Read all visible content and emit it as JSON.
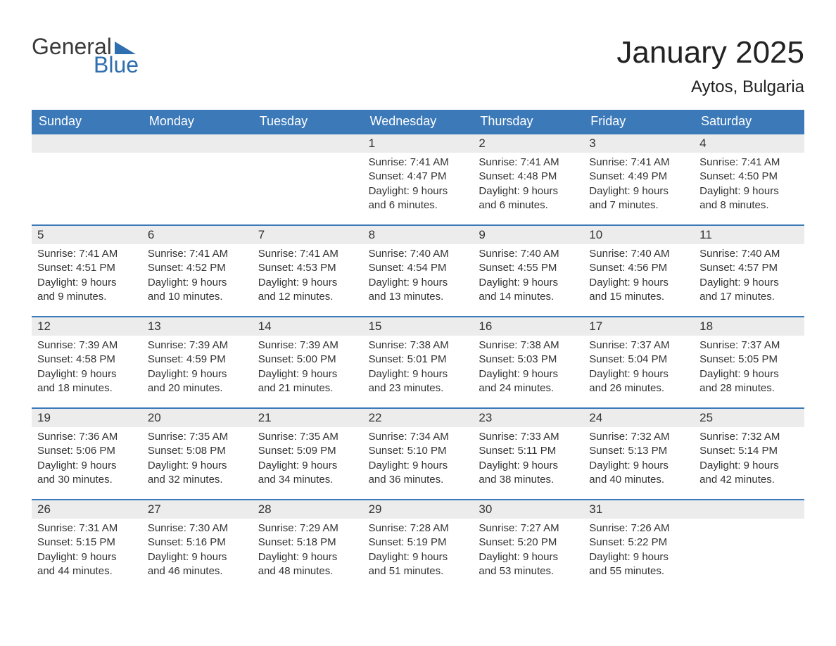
{
  "brand": {
    "word1": "General",
    "word2": "Blue",
    "text_color": "#3a3a3a",
    "accent_color": "#2f6faf"
  },
  "title": {
    "month": "January 2025",
    "location": "Aytos, Bulgaria"
  },
  "styles": {
    "header_bg": "#3b79b9",
    "header_text": "#ffffff",
    "daybar_bg": "#ececec",
    "border_color": "#3b79b9",
    "body_text": "#333333",
    "weekday_fontsize": 18,
    "daynum_fontsize": 17,
    "body_fontsize": 15,
    "title_fontsize": 44,
    "location_fontsize": 24
  },
  "weekdays": [
    "Sunday",
    "Monday",
    "Tuesday",
    "Wednesday",
    "Thursday",
    "Friday",
    "Saturday"
  ],
  "weeks": [
    [
      {
        "n": "",
        "sunrise": "",
        "sunset": "",
        "day": ""
      },
      {
        "n": "",
        "sunrise": "",
        "sunset": "",
        "day": ""
      },
      {
        "n": "",
        "sunrise": "",
        "sunset": "",
        "day": ""
      },
      {
        "n": "1",
        "sunrise": "Sunrise: 7:41 AM",
        "sunset": "Sunset: 4:47 PM",
        "day": "Daylight: 9 hours and 6 minutes."
      },
      {
        "n": "2",
        "sunrise": "Sunrise: 7:41 AM",
        "sunset": "Sunset: 4:48 PM",
        "day": "Daylight: 9 hours and 6 minutes."
      },
      {
        "n": "3",
        "sunrise": "Sunrise: 7:41 AM",
        "sunset": "Sunset: 4:49 PM",
        "day": "Daylight: 9 hours and 7 minutes."
      },
      {
        "n": "4",
        "sunrise": "Sunrise: 7:41 AM",
        "sunset": "Sunset: 4:50 PM",
        "day": "Daylight: 9 hours and 8 minutes."
      }
    ],
    [
      {
        "n": "5",
        "sunrise": "Sunrise: 7:41 AM",
        "sunset": "Sunset: 4:51 PM",
        "day": "Daylight: 9 hours and 9 minutes."
      },
      {
        "n": "6",
        "sunrise": "Sunrise: 7:41 AM",
        "sunset": "Sunset: 4:52 PM",
        "day": "Daylight: 9 hours and 10 minutes."
      },
      {
        "n": "7",
        "sunrise": "Sunrise: 7:41 AM",
        "sunset": "Sunset: 4:53 PM",
        "day": "Daylight: 9 hours and 12 minutes."
      },
      {
        "n": "8",
        "sunrise": "Sunrise: 7:40 AM",
        "sunset": "Sunset: 4:54 PM",
        "day": "Daylight: 9 hours and 13 minutes."
      },
      {
        "n": "9",
        "sunrise": "Sunrise: 7:40 AM",
        "sunset": "Sunset: 4:55 PM",
        "day": "Daylight: 9 hours and 14 minutes."
      },
      {
        "n": "10",
        "sunrise": "Sunrise: 7:40 AM",
        "sunset": "Sunset: 4:56 PM",
        "day": "Daylight: 9 hours and 15 minutes."
      },
      {
        "n": "11",
        "sunrise": "Sunrise: 7:40 AM",
        "sunset": "Sunset: 4:57 PM",
        "day": "Daylight: 9 hours and 17 minutes."
      }
    ],
    [
      {
        "n": "12",
        "sunrise": "Sunrise: 7:39 AM",
        "sunset": "Sunset: 4:58 PM",
        "day": "Daylight: 9 hours and 18 minutes."
      },
      {
        "n": "13",
        "sunrise": "Sunrise: 7:39 AM",
        "sunset": "Sunset: 4:59 PM",
        "day": "Daylight: 9 hours and 20 minutes."
      },
      {
        "n": "14",
        "sunrise": "Sunrise: 7:39 AM",
        "sunset": "Sunset: 5:00 PM",
        "day": "Daylight: 9 hours and 21 minutes."
      },
      {
        "n": "15",
        "sunrise": "Sunrise: 7:38 AM",
        "sunset": "Sunset: 5:01 PM",
        "day": "Daylight: 9 hours and 23 minutes."
      },
      {
        "n": "16",
        "sunrise": "Sunrise: 7:38 AM",
        "sunset": "Sunset: 5:03 PM",
        "day": "Daylight: 9 hours and 24 minutes."
      },
      {
        "n": "17",
        "sunrise": "Sunrise: 7:37 AM",
        "sunset": "Sunset: 5:04 PM",
        "day": "Daylight: 9 hours and 26 minutes."
      },
      {
        "n": "18",
        "sunrise": "Sunrise: 7:37 AM",
        "sunset": "Sunset: 5:05 PM",
        "day": "Daylight: 9 hours and 28 minutes."
      }
    ],
    [
      {
        "n": "19",
        "sunrise": "Sunrise: 7:36 AM",
        "sunset": "Sunset: 5:06 PM",
        "day": "Daylight: 9 hours and 30 minutes."
      },
      {
        "n": "20",
        "sunrise": "Sunrise: 7:35 AM",
        "sunset": "Sunset: 5:08 PM",
        "day": "Daylight: 9 hours and 32 minutes."
      },
      {
        "n": "21",
        "sunrise": "Sunrise: 7:35 AM",
        "sunset": "Sunset: 5:09 PM",
        "day": "Daylight: 9 hours and 34 minutes."
      },
      {
        "n": "22",
        "sunrise": "Sunrise: 7:34 AM",
        "sunset": "Sunset: 5:10 PM",
        "day": "Daylight: 9 hours and 36 minutes."
      },
      {
        "n": "23",
        "sunrise": "Sunrise: 7:33 AM",
        "sunset": "Sunset: 5:11 PM",
        "day": "Daylight: 9 hours and 38 minutes."
      },
      {
        "n": "24",
        "sunrise": "Sunrise: 7:32 AM",
        "sunset": "Sunset: 5:13 PM",
        "day": "Daylight: 9 hours and 40 minutes."
      },
      {
        "n": "25",
        "sunrise": "Sunrise: 7:32 AM",
        "sunset": "Sunset: 5:14 PM",
        "day": "Daylight: 9 hours and 42 minutes."
      }
    ],
    [
      {
        "n": "26",
        "sunrise": "Sunrise: 7:31 AM",
        "sunset": "Sunset: 5:15 PM",
        "day": "Daylight: 9 hours and 44 minutes."
      },
      {
        "n": "27",
        "sunrise": "Sunrise: 7:30 AM",
        "sunset": "Sunset: 5:16 PM",
        "day": "Daylight: 9 hours and 46 minutes."
      },
      {
        "n": "28",
        "sunrise": "Sunrise: 7:29 AM",
        "sunset": "Sunset: 5:18 PM",
        "day": "Daylight: 9 hours and 48 minutes."
      },
      {
        "n": "29",
        "sunrise": "Sunrise: 7:28 AM",
        "sunset": "Sunset: 5:19 PM",
        "day": "Daylight: 9 hours and 51 minutes."
      },
      {
        "n": "30",
        "sunrise": "Sunrise: 7:27 AM",
        "sunset": "Sunset: 5:20 PM",
        "day": "Daylight: 9 hours and 53 minutes."
      },
      {
        "n": "31",
        "sunrise": "Sunrise: 7:26 AM",
        "sunset": "Sunset: 5:22 PM",
        "day": "Daylight: 9 hours and 55 minutes."
      },
      {
        "n": "",
        "sunrise": "",
        "sunset": "",
        "day": ""
      }
    ]
  ]
}
